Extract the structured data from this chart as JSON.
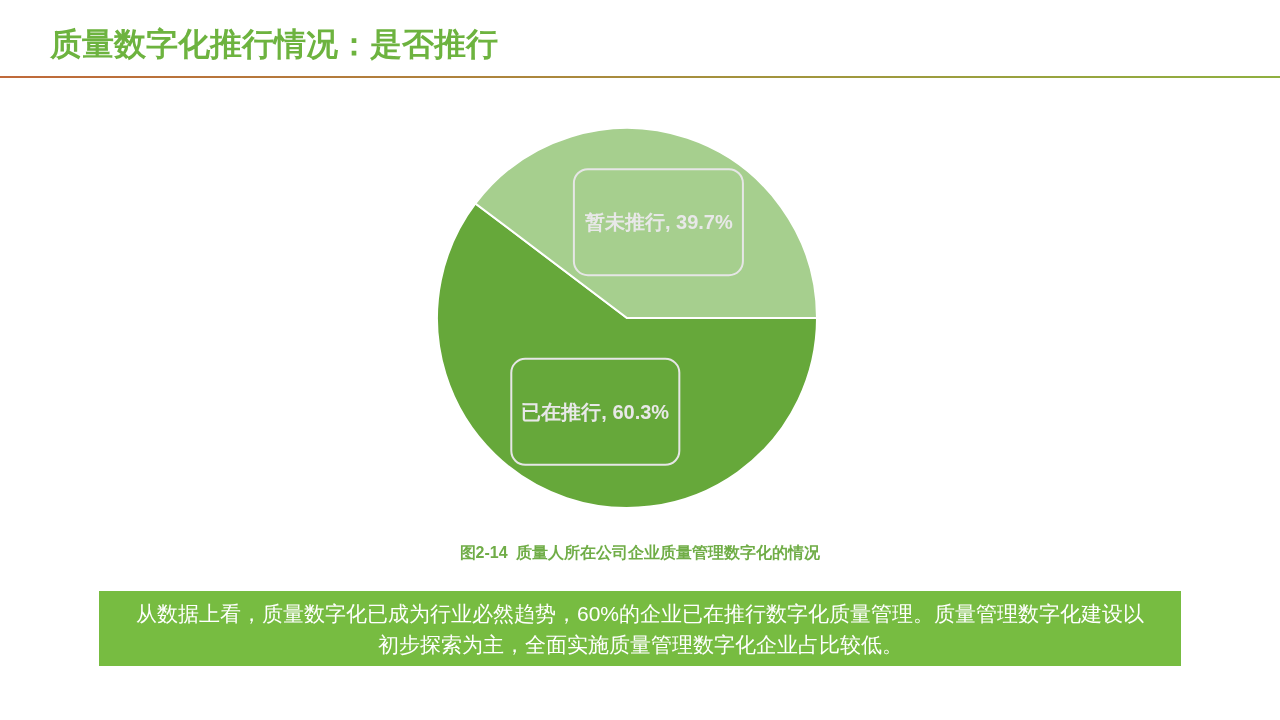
{
  "chart_data": {
    "type": "pie",
    "title": "质量数字化推行情况：是否推行",
    "categories": [
      "已在推行",
      "暂未推行"
    ],
    "values": [
      60.3,
      39.7
    ],
    "colors": [
      "#66a83a",
      "#a6cf8e"
    ],
    "value_labels": [
      "60.3%",
      "39.7%"
    ],
    "annotations": [
      "图2-14  质量人所在公司企业质量管理数字化的情况",
      "从数据上看，质量数字化已成为行业必然趋势，60%的企业已在推行数字化质量管理。质量管理数字化建设以初步探索为主，全面实施质量管理数字化企业占比较低。"
    ]
  }
}
